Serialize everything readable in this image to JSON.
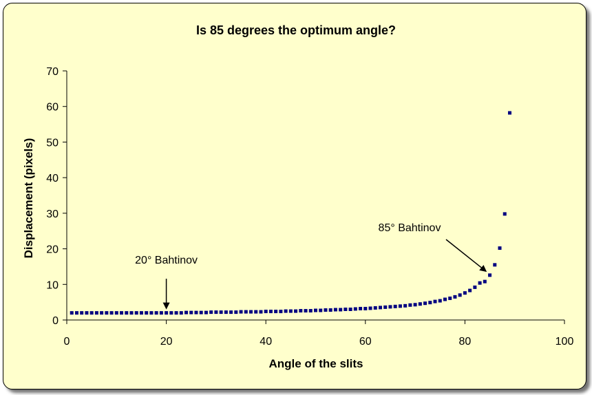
{
  "chart_data": {
    "type": "scatter",
    "title": "Is 85 degrees the optimum angle?",
    "xlabel": "Angle of the slits",
    "ylabel": "Displacement (pixels)",
    "xlim": [
      0,
      100
    ],
    "ylim": [
      0,
      70
    ],
    "xticks": [
      "0",
      "20",
      "40",
      "60",
      "80",
      "100"
    ],
    "yticks": [
      "0",
      "10",
      "20",
      "30",
      "40",
      "50",
      "60",
      "70"
    ],
    "grid": false,
    "legend": "none",
    "marker_color": "#000080",
    "series": [
      {
        "x": [
          1,
          2,
          3,
          4,
          5,
          6,
          7,
          8,
          9,
          10,
          11,
          12,
          13,
          14,
          15,
          16,
          17,
          18,
          19,
          20,
          21,
          22,
          23,
          24,
          25,
          26,
          27,
          28,
          29,
          30,
          31,
          32,
          33,
          34,
          35,
          36,
          37,
          38,
          39,
          40,
          41,
          42,
          43,
          44,
          45,
          46,
          47,
          48,
          49,
          50,
          51,
          52,
          53,
          54,
          55,
          56,
          57,
          58,
          59,
          60,
          61,
          62,
          63,
          64,
          65,
          66,
          67,
          68,
          69,
          70,
          71,
          72,
          73,
          74,
          75,
          76,
          77,
          78,
          79,
          80,
          81,
          82,
          83,
          84,
          85,
          86,
          87,
          88,
          89
        ],
        "y": [
          2.0,
          2.0,
          2.0,
          2.0,
          2.0,
          2.0,
          2.0,
          2.0,
          2.0,
          2.0,
          2.0,
          2.0,
          2.0,
          2.0,
          2.0,
          2.0,
          2.0,
          2.0,
          2.0,
          2.0,
          2.0,
          2.0,
          2.0,
          2.1,
          2.1,
          2.1,
          2.1,
          2.1,
          2.2,
          2.2,
          2.2,
          2.2,
          2.2,
          2.2,
          2.3,
          2.3,
          2.3,
          2.3,
          2.3,
          2.4,
          2.4,
          2.4,
          2.4,
          2.5,
          2.5,
          2.5,
          2.6,
          2.6,
          2.6,
          2.7,
          2.7,
          2.8,
          2.8,
          2.9,
          2.9,
          3.0,
          3.0,
          3.1,
          3.2,
          3.2,
          3.3,
          3.4,
          3.5,
          3.6,
          3.7,
          3.8,
          3.9,
          4.0,
          4.2,
          4.3,
          4.5,
          4.7,
          4.9,
          5.2,
          5.4,
          5.8,
          6.1,
          6.5,
          7.0,
          7.6,
          8.3,
          9.2,
          10.4,
          10.8,
          12.6,
          15.5,
          20.2,
          29.8,
          58.2
        ]
      }
    ],
    "annotations": [
      {
        "text": "20° Bahtinov",
        "x": 20,
        "y": 2.0
      },
      {
        "text": "85° Bahtinov",
        "x": 85,
        "y": 12.6
      }
    ]
  }
}
